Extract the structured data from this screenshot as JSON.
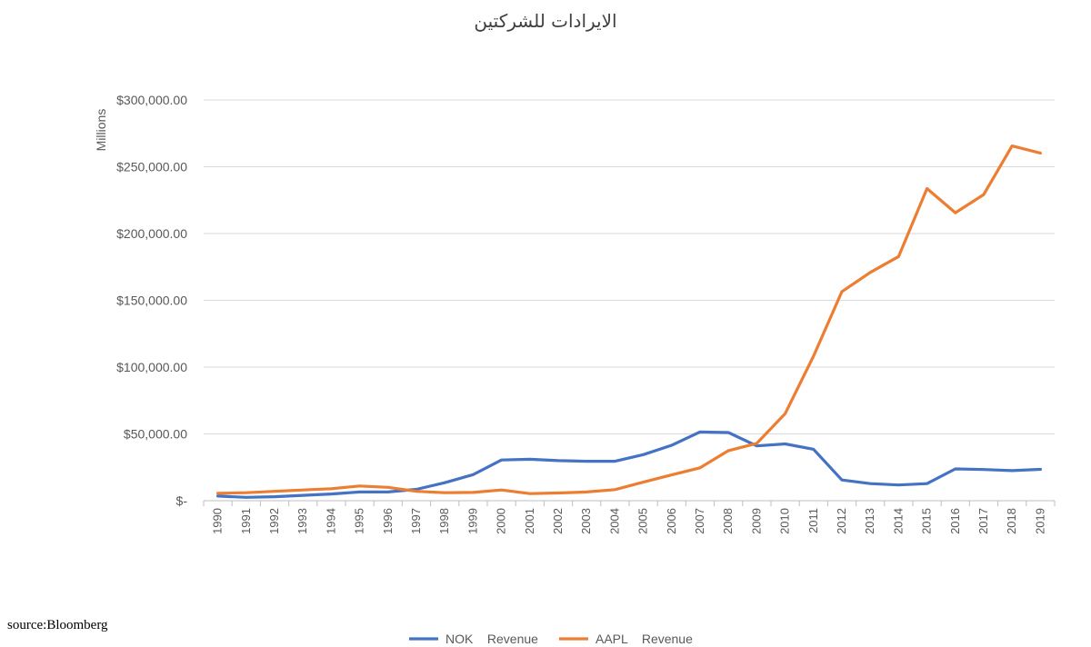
{
  "chart_data": {
    "type": "line",
    "title": "الايرادات للشركتين",
    "ylabel": "Millions",
    "xlabel": "",
    "ylim": [
      0,
      300000
    ],
    "yticks": [
      0,
      50000,
      100000,
      150000,
      200000,
      250000,
      300000
    ],
    "ytick_labels": [
      "$-",
      "$50,000.00",
      "$100,000.00",
      "$150,000.00",
      "$200,000.00",
      "$250,000.00",
      "$300,000.00"
    ],
    "grid": true,
    "legend_position": "bottom",
    "categories": [
      "1990",
      "1991",
      "1992",
      "1993",
      "1994",
      "1995",
      "1996",
      "1997",
      "1998",
      "1999",
      "2000",
      "2001",
      "2002",
      "2003",
      "2004",
      "2005",
      "2006",
      "2007",
      "2008",
      "2009",
      "2010",
      "2011",
      "2012",
      "2013",
      "2014",
      "2015",
      "2016",
      "2017",
      "2018",
      "2019"
    ],
    "series": [
      {
        "name": "NOK    Revenue",
        "color": "#4472C4",
        "values": [
          3500,
          2500,
          3000,
          4000,
          5000,
          6500,
          6500,
          8500,
          13500,
          19500,
          30500,
          31000,
          30000,
          29500,
          29500,
          34500,
          41500,
          51500,
          51000,
          41000,
          42500,
          38500,
          15500,
          12800,
          11800,
          12800,
          23800,
          23300,
          22500,
          23500
        ]
      },
      {
        "name": "AAPL    Revenue",
        "color": "#ED7D31",
        "values": [
          5500,
          6000,
          7000,
          8000,
          9000,
          11000,
          10000,
          7000,
          6000,
          6200,
          8000,
          5300,
          5800,
          6500,
          8300,
          13900,
          19300,
          24600,
          37500,
          42900,
          65200,
          108200,
          156500,
          170900,
          182800,
          233700,
          215600,
          229200,
          265600,
          260200
        ]
      }
    ]
  },
  "source_text": "source:Bloomberg"
}
